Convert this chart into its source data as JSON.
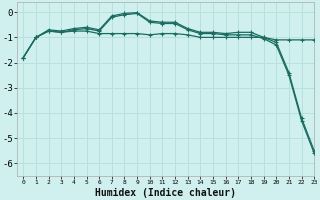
{
  "title": "",
  "xlabel": "Humidex (Indice chaleur)",
  "background_color": "#cff0ee",
  "grid_color": "#b8e0dc",
  "line_color": "#1a6b60",
  "xlim": [
    -0.5,
    23
  ],
  "ylim": [
    -6.5,
    0.4
  ],
  "yticks": [
    0,
    -1,
    -2,
    -3,
    -4,
    -5,
    -6
  ],
  "xticks": [
    0,
    1,
    2,
    3,
    4,
    5,
    6,
    7,
    8,
    9,
    10,
    11,
    12,
    13,
    14,
    15,
    16,
    17,
    18,
    19,
    20,
    21,
    22,
    23
  ],
  "lines": [
    {
      "x": [
        0,
        1,
        2,
        3,
        4,
        5,
        6,
        7,
        8,
        9,
        10,
        11,
        12,
        13,
        14,
        15,
        16,
        17,
        18,
        19,
        20,
        21,
        22,
        23
      ],
      "y": [
        -1.8,
        -1.0,
        -0.75,
        -0.8,
        -0.75,
        -0.75,
        -0.85,
        -0.85,
        -0.85,
        -0.85,
        -0.9,
        -0.85,
        -0.85,
        -0.9,
        -1.0,
        -1.0,
        -1.0,
        -1.0,
        -1.0,
        -1.0,
        -1.1,
        -1.1,
        -1.1,
        -1.1
      ]
    },
    {
      "x": [
        0,
        1,
        2,
        3,
        4,
        5,
        6,
        7,
        8,
        9,
        10,
        11,
        12,
        13,
        14,
        15,
        16,
        17,
        18,
        19,
        20,
        21,
        22,
        23
      ],
      "y": [
        -1.8,
        -1.0,
        -0.75,
        -0.8,
        -0.7,
        -0.65,
        -0.75,
        -0.2,
        -0.1,
        -0.05,
        -0.4,
        -0.45,
        -0.45,
        -0.7,
        -0.85,
        -0.85,
        -0.9,
        -0.9,
        -0.9,
        -1.05,
        -1.3,
        -2.5,
        -4.3,
        -5.6
      ]
    },
    {
      "x": [
        0,
        1,
        2,
        3,
        4,
        5,
        6,
        7,
        8,
        9,
        10,
        11,
        12,
        13,
        14,
        15,
        16,
        17,
        18,
        19,
        20,
        21,
        22,
        23
      ],
      "y": [
        -1.8,
        -1.0,
        -0.7,
        -0.75,
        -0.65,
        -0.6,
        -0.7,
        -0.15,
        -0.05,
        -0.02,
        -0.35,
        -0.4,
        -0.4,
        -0.65,
        -0.8,
        -0.8,
        -0.85,
        -0.8,
        -0.8,
        -1.0,
        -1.2,
        -2.4,
        -4.2,
        -5.5
      ]
    }
  ]
}
